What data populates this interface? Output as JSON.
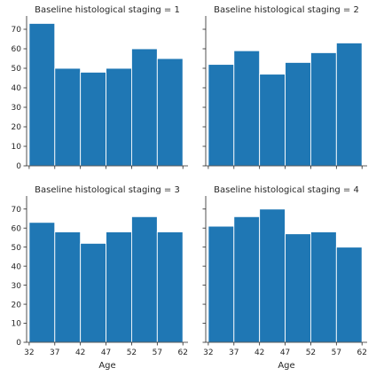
{
  "chart_data": {
    "type": "bar",
    "bar_color": "#1f77b4",
    "layout": "2x2 facet grid, shared x and y axes",
    "xlabel": "Age",
    "ylim": [
      0,
      75
    ],
    "yticks": [
      0,
      10,
      20,
      30,
      40,
      50,
      60,
      70
    ],
    "xlim": [
      31.5,
      63
    ],
    "xticks": [
      32,
      37,
      42,
      47,
      52,
      57,
      62
    ],
    "bin_edges": [
      32,
      37,
      42,
      47,
      52,
      57,
      62
    ],
    "grid": false,
    "panels": [
      {
        "title": "Baseline histological staging = 1",
        "values": [
          73,
          50,
          48,
          50,
          60,
          55
        ]
      },
      {
        "title": "Baseline histological staging = 2",
        "values": [
          52,
          59,
          47,
          53,
          58,
          63
        ]
      },
      {
        "title": "Baseline histological staging = 3",
        "values": [
          63,
          58,
          52,
          58,
          66,
          58
        ]
      },
      {
        "title": "Baseline histological staging = 4",
        "values": [
          61,
          66,
          70,
          57,
          58,
          50
        ]
      }
    ]
  }
}
